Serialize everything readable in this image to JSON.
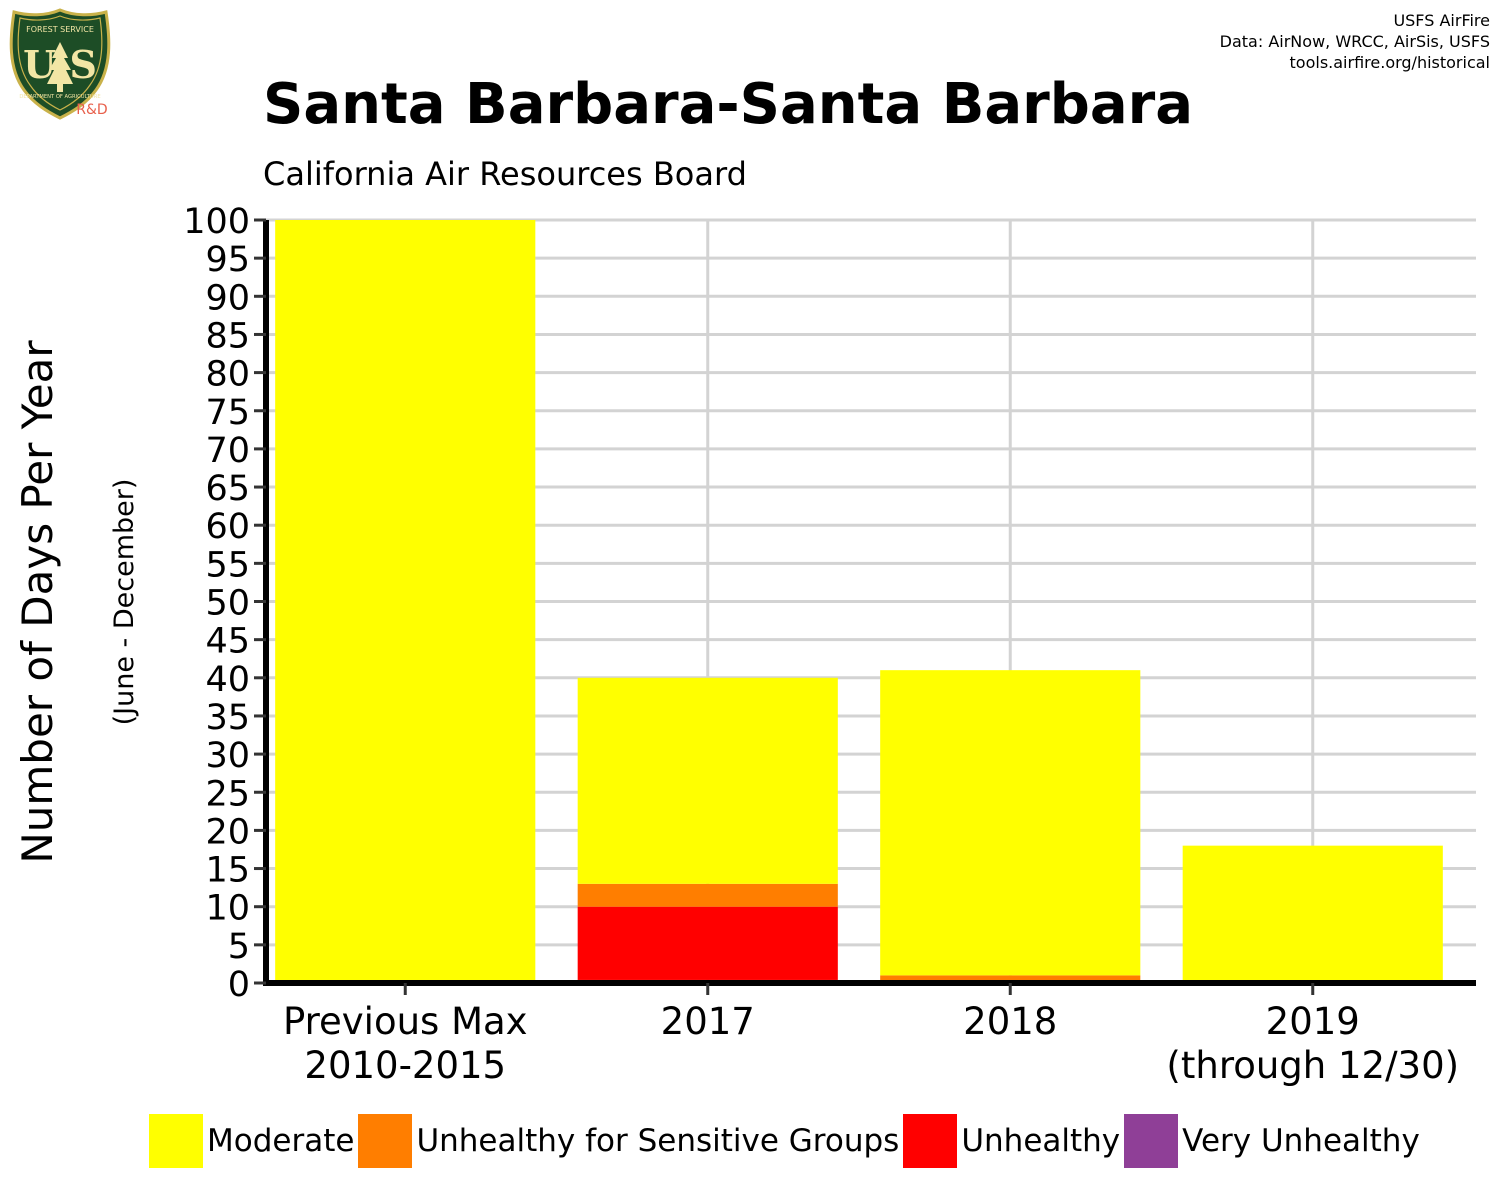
{
  "logo": {
    "icon": "usfs-shield-logo",
    "text_top": "FOREST SERVICE",
    "letters": "U S",
    "text_bottom": "DEPARTMENT OF AGRICULTURE",
    "tag": "R&D"
  },
  "credits": {
    "line1": "USFS AirFire",
    "line2": "Data: AirNow, WRCC, AirSis, USFS",
    "line3": "tools.airfire.org/historical"
  },
  "colors": {
    "moderate": "#ffff00",
    "usg": "#ff7e00",
    "unhealthy": "#ff0000",
    "very_unhealthy": "#8f3f97",
    "grid": "#d3d3d3",
    "axis": "#000000"
  },
  "chart_data": {
    "type": "bar",
    "stacked": true,
    "title": "Santa Barbara-Santa Barbara",
    "subtitle": "California Air Resources Board",
    "ylabel": "Number of Days Per Year",
    "ylabel_sub": "(June - December)",
    "xlabel": "",
    "ylim": [
      0,
      100
    ],
    "yticks": [
      0,
      5,
      10,
      15,
      20,
      25,
      30,
      35,
      40,
      45,
      50,
      55,
      60,
      65,
      70,
      75,
      80,
      85,
      90,
      95,
      100
    ],
    "categories": [
      [
        "Previous Max",
        "2010-2015"
      ],
      [
        "2017"
      ],
      [
        "2018"
      ],
      [
        "2019",
        "(through 12/30)"
      ]
    ],
    "series": [
      {
        "name": "Very Unhealthy",
        "color": "#8f3f97",
        "values": [
          0,
          0.4,
          0,
          0
        ]
      },
      {
        "name": "Unhealthy",
        "color": "#ff0000",
        "values": [
          0,
          9.6,
          0,
          0
        ]
      },
      {
        "name": "Unhealthy for Sensitive Groups",
        "color": "#ff7e00",
        "values": [
          0,
          3,
          1,
          0
        ]
      },
      {
        "name": "Moderate",
        "color": "#ffff00",
        "values": [
          100,
          27,
          40,
          18
        ]
      }
    ],
    "grid": true,
    "legend_position": "bottom"
  }
}
